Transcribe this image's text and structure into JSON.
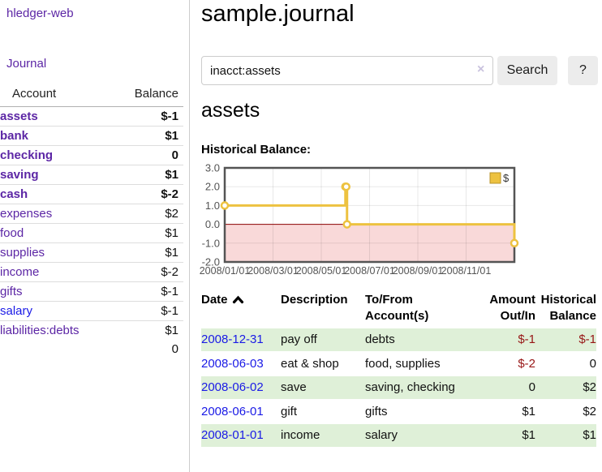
{
  "colors": {
    "accent_purple": "#5c26a5",
    "link_blue": "#1a1ae6",
    "negative_strong": "#971616",
    "negative_muted": "#b36a6a",
    "row_green": "#dff0d8",
    "chart_line_gold": "#edc240",
    "chart_negative_region_pink": "#f9d9d9",
    "chart_zero_line_red": "#8b0000"
  },
  "sidebar": {
    "app_title": "hledger-web",
    "journal_link": "Journal",
    "accounts_table": {
      "header_account": "Account",
      "header_balance": "Balance",
      "rows": [
        {
          "name": "assets",
          "balance": "$-1",
          "indent": 1,
          "bold": true,
          "neg": true,
          "blue": false
        },
        {
          "name": "bank",
          "balance": "$1",
          "indent": 2,
          "bold": true,
          "neg": false,
          "blue": false
        },
        {
          "name": "checking",
          "balance": "0",
          "indent": 3,
          "bold": true,
          "neg": false,
          "blue": false
        },
        {
          "name": "saving",
          "balance": "$1",
          "indent": 3,
          "bold": true,
          "neg": false,
          "blue": false
        },
        {
          "name": "cash",
          "balance": "$-2",
          "indent": 2,
          "bold": true,
          "neg": true,
          "blue": false
        },
        {
          "name": "expenses",
          "balance": "$2",
          "indent": 1,
          "bold": false,
          "neg": false,
          "blue": false
        },
        {
          "name": "food",
          "balance": "$1",
          "indent": 2,
          "bold": false,
          "neg": false,
          "blue": false
        },
        {
          "name": "supplies",
          "balance": "$1",
          "indent": 2,
          "bold": false,
          "neg": false,
          "blue": false
        },
        {
          "name": "income",
          "balance": "$-2",
          "indent": 1,
          "bold": false,
          "neg": true,
          "blue": false
        },
        {
          "name": "gifts",
          "balance": "$-1",
          "indent": 2,
          "bold": false,
          "neg": true,
          "blue": false
        },
        {
          "name": "salary",
          "balance": "$-1",
          "indent": 2,
          "bold": false,
          "neg": true,
          "blue": true
        },
        {
          "name": "liabilities:debts",
          "balance": "$1",
          "indent": 1,
          "bold": false,
          "neg": false,
          "blue": false
        }
      ],
      "total": "0"
    }
  },
  "header": {
    "title": "sample.journal"
  },
  "search": {
    "value": "inacct:assets",
    "clear_icon": "×",
    "search_button": "Search",
    "help_button": "?"
  },
  "account_view": {
    "heading": "assets",
    "chart_title": "Historical Balance:"
  },
  "chart_data": {
    "type": "line",
    "step": true,
    "title": "Historical Balance:",
    "series": [
      {
        "name": "$",
        "color": "#edc240",
        "points": [
          [
            "2008-01-01",
            1
          ],
          [
            "2008-06-01",
            2
          ],
          [
            "2008-06-02",
            2
          ],
          [
            "2008-06-03",
            0
          ],
          [
            "2008-12-31",
            -1
          ]
        ]
      }
    ],
    "x_ticks": [
      {
        "label": "2008/01/01",
        "month_index": 0
      },
      {
        "label": "2008/03/01",
        "month_index": 2
      },
      {
        "label": "2008/05/01",
        "month_index": 4
      },
      {
        "label": "2008/07/01",
        "month_index": 6
      },
      {
        "label": "2008/09/01",
        "month_index": 8
      },
      {
        "label": "2008/11/01",
        "month_index": 10
      }
    ],
    "y_ticks": [
      "3.0",
      "2.0",
      "1.0",
      "0.0",
      "-1.0",
      "-2.0"
    ],
    "ylim": [
      -2,
      3
    ],
    "xlim_month_index": [
      0,
      12
    ],
    "grid": true,
    "legend": {
      "label": "$",
      "position": "top-right"
    }
  },
  "register": {
    "headers": [
      {
        "l1": "Date",
        "l2": "",
        "align": "left",
        "sortable": true
      },
      {
        "l1": "Description",
        "l2": "",
        "align": "left",
        "sortable": false
      },
      {
        "l1": "To/From",
        "l2": "Account(s)",
        "align": "left",
        "sortable": false
      },
      {
        "l1": "Amount",
        "l2": "Out/In",
        "align": "right",
        "sortable": false
      },
      {
        "l1": "Historical",
        "l2": "Balance",
        "align": "right",
        "sortable": false
      }
    ],
    "rows": [
      {
        "date": "2008-12-31",
        "description": "pay off",
        "accounts": "debts",
        "amount": "$-1",
        "balance": "$-1",
        "amount_neg": true,
        "balance_neg": true,
        "shaded": true
      },
      {
        "date": "2008-06-03",
        "description": "eat & shop",
        "accounts": "food, supplies",
        "amount": "$-2",
        "balance": "0",
        "amount_neg": true,
        "balance_neg": false,
        "shaded": false
      },
      {
        "date": "2008-06-02",
        "description": "save",
        "accounts": "saving, checking",
        "amount": "0",
        "balance": "$2",
        "amount_neg": false,
        "balance_neg": false,
        "shaded": true
      },
      {
        "date": "2008-06-01",
        "description": "gift",
        "accounts": "gifts",
        "amount": "$1",
        "balance": "$2",
        "amount_neg": false,
        "balance_neg": false,
        "shaded": false
      },
      {
        "date": "2008-01-01",
        "description": "income",
        "accounts": "salary",
        "amount": "$1",
        "balance": "$1",
        "amount_neg": false,
        "balance_neg": false,
        "shaded": true
      }
    ]
  }
}
